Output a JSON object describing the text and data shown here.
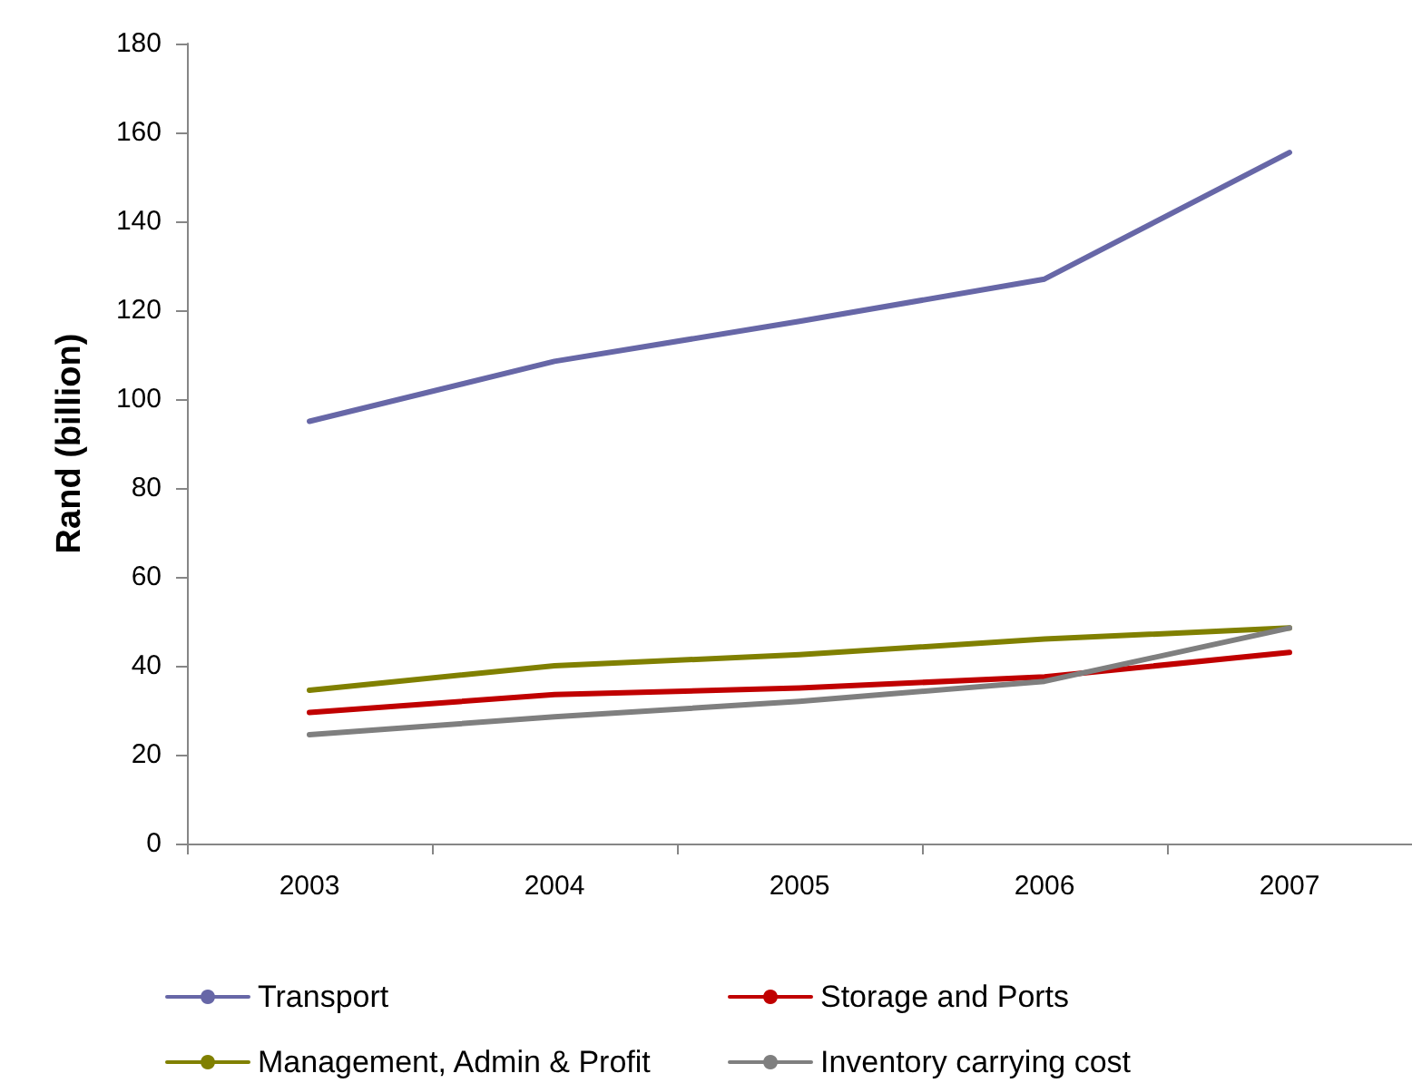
{
  "chart_data": {
    "type": "line",
    "ylabel": "Rand (billion)",
    "categories": [
      "2003",
      "2004",
      "2005",
      "2006",
      "2007"
    ],
    "ylim": [
      0,
      180
    ],
    "yticks": [
      0,
      20,
      40,
      60,
      80,
      100,
      120,
      140,
      160,
      180
    ],
    "grid": false,
    "legend": "bottom",
    "marker": "none",
    "line_style": "solid",
    "series": [
      {
        "name": "Transport",
        "color": "#6767a7",
        "values": [
          95,
          108.5,
          117.5,
          127,
          155.5
        ]
      },
      {
        "name": "Storage and Ports",
        "color": "#c00000",
        "values": [
          29.5,
          33.5,
          35,
          37.5,
          43
        ]
      },
      {
        "name": "Management, Admin & Profit",
        "color": "#808000",
        "values": [
          34.5,
          40,
          42.5,
          46,
          48.5
        ]
      },
      {
        "name": "Inventory carrying cost",
        "color": "#7f7f7f",
        "values": [
          24.5,
          28.5,
          32,
          36.5,
          48.5
        ]
      }
    ]
  }
}
